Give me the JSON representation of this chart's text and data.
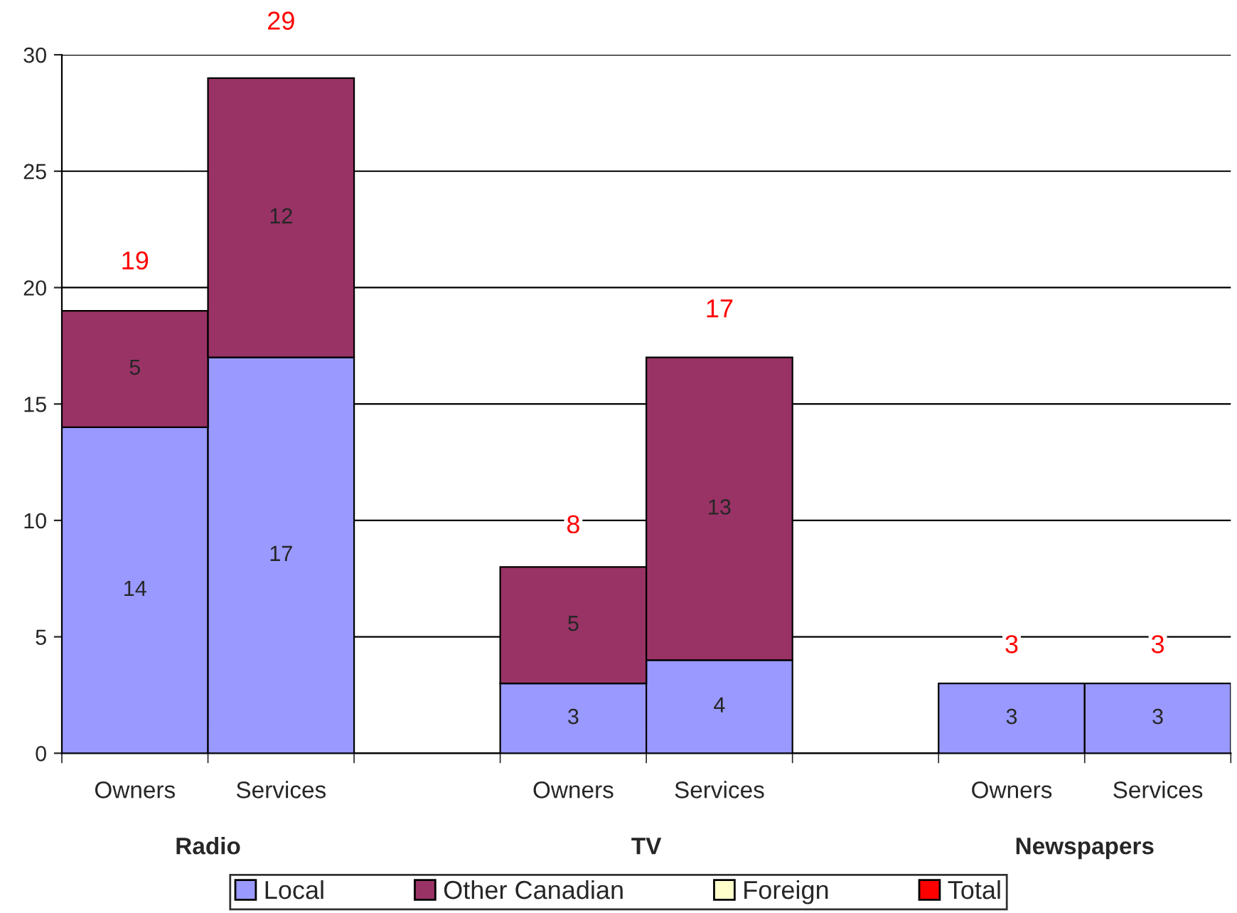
{
  "chart_data": {
    "type": "bar",
    "stacked": true,
    "categories": [
      "Owners",
      "Services",
      null,
      "Owners",
      "Services",
      null,
      "Owners",
      "Services"
    ],
    "series": [
      {
        "name": "Local",
        "color": "#9999ff",
        "values": [
          14,
          17,
          null,
          3,
          4,
          null,
          3,
          3
        ]
      },
      {
        "name": "Other Canadian",
        "color": "#993366",
        "values": [
          5,
          12,
          null,
          5,
          13,
          null,
          null,
          null
        ]
      },
      {
        "name": "Foreign",
        "color": "#ffffcc",
        "values": [
          null,
          null,
          null,
          null,
          null,
          null,
          null,
          null
        ]
      },
      {
        "name": "Total",
        "color": "#ff0000",
        "values": [
          null,
          null,
          null,
          null,
          null,
          null,
          null,
          null
        ]
      }
    ],
    "totals": [
      "19",
      "29",
      null,
      "8",
      "17",
      null,
      "3",
      "3"
    ],
    "annotations": [
      "Radio",
      "TV",
      "Newspapers"
    ],
    "ylim": [
      0,
      30
    ],
    "yticks": [
      0,
      5,
      10,
      15,
      20,
      25,
      30
    ],
    "grid": "y",
    "data_labels": true,
    "legend": "bottom"
  }
}
